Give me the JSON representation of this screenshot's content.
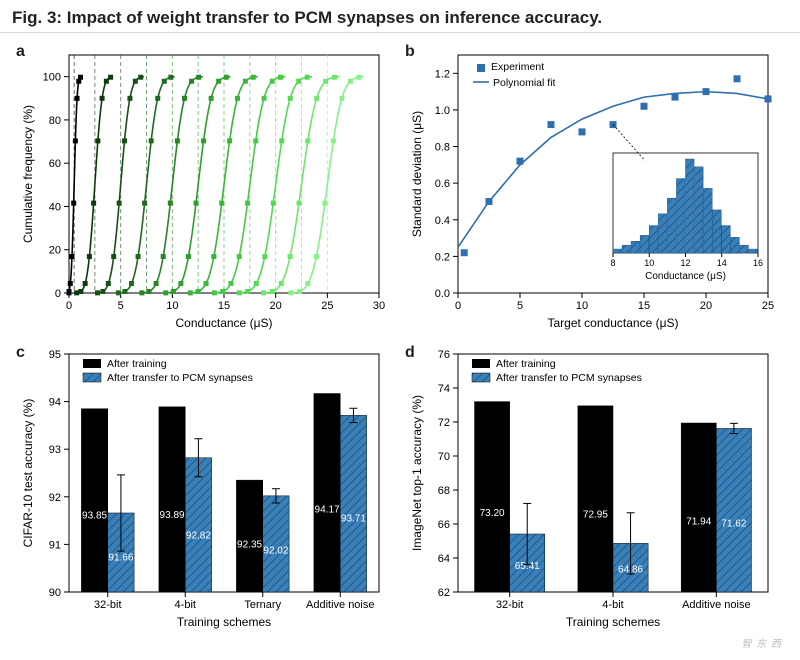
{
  "title": "Fig. 3: Impact of weight transfer to PCM synapses on inference accuracy.",
  "panel_labels": {
    "a": "a",
    "b": "b",
    "c": "c",
    "d": "d"
  },
  "colors": {
    "bg": "#ffffff",
    "axis": "#000000",
    "grid": "#d0d0d0",
    "bar_black": "#000000",
    "bar_blue": "#3a7fb8",
    "bar_blue_stripe": "#1f5a8a",
    "scatter_blue": "#2e6fae"
  },
  "panel_a": {
    "type": "cdf",
    "xlabel": "Conductance (μS)",
    "ylabel": "Cumulative frequency (%)",
    "xlim": [
      0,
      30
    ],
    "xtick_step": 5,
    "ylim": [
      0,
      110
    ],
    "yticks": [
      0,
      20,
      40,
      60,
      80,
      100
    ],
    "curves": [
      {
        "target": 0.5,
        "sd": 0.22,
        "color": "#000000"
      },
      {
        "target": 2.5,
        "sd": 0.55,
        "color": "#0d3a0d"
      },
      {
        "target": 5.0,
        "sd": 0.7,
        "color": "#174f17"
      },
      {
        "target": 7.5,
        "sd": 0.85,
        "color": "#1f6a1f"
      },
      {
        "target": 10.0,
        "sd": 0.92,
        "color": "#278527"
      },
      {
        "target": 12.5,
        "sd": 0.98,
        "color": "#2f9e2f"
      },
      {
        "target": 15.0,
        "sd": 1.02,
        "color": "#39b539"
      },
      {
        "target": 17.5,
        "sd": 1.07,
        "color": "#45c945"
      },
      {
        "target": 20.0,
        "sd": 1.1,
        "color": "#55d955"
      },
      {
        "target": 22.5,
        "sd": 1.15,
        "color": "#6ee66e"
      },
      {
        "target": 25.0,
        "sd": 1.1,
        "color": "#88f088"
      }
    ]
  },
  "panel_b": {
    "type": "scatter+fit",
    "xlabel": "Target conductance (μS)",
    "ylabel": "Standard deviation (μS)",
    "xlim": [
      0,
      25
    ],
    "xtick_step": 5,
    "ylim": [
      0.0,
      1.3
    ],
    "ytick_step": 0.2,
    "legend": [
      "Experiment",
      "Polynomial fit"
    ],
    "experiment": [
      [
        0.5,
        0.22
      ],
      [
        2.5,
        0.5
      ],
      [
        5.0,
        0.72
      ],
      [
        7.5,
        0.92
      ],
      [
        10.0,
        0.88
      ],
      [
        12.5,
        0.92
      ],
      [
        15.0,
        1.02
      ],
      [
        17.5,
        1.07
      ],
      [
        20.0,
        1.1
      ],
      [
        22.5,
        1.17
      ],
      [
        25.0,
        1.06
      ]
    ],
    "fit": [
      [
        0,
        0.25
      ],
      [
        2.5,
        0.5
      ],
      [
        5,
        0.7
      ],
      [
        7.5,
        0.85
      ],
      [
        10,
        0.95
      ],
      [
        12.5,
        1.02
      ],
      [
        15,
        1.07
      ],
      [
        17.5,
        1.09
      ],
      [
        20,
        1.1
      ],
      [
        22.5,
        1.09
      ],
      [
        25,
        1.06
      ]
    ],
    "inset": {
      "xlabel": "Conductance (μS)",
      "xlim": [
        8,
        16
      ],
      "xticks": [
        8,
        10,
        12,
        14,
        16
      ],
      "bins": [
        [
          8,
          2
        ],
        [
          8.5,
          4
        ],
        [
          9,
          6
        ],
        [
          9.5,
          9
        ],
        [
          10,
          14
        ],
        [
          10.5,
          20
        ],
        [
          11,
          28
        ],
        [
          11.5,
          38
        ],
        [
          12,
          48
        ],
        [
          12.5,
          44
        ],
        [
          13,
          33
        ],
        [
          13.5,
          22
        ],
        [
          14,
          14
        ],
        [
          14.5,
          8
        ],
        [
          15,
          4
        ],
        [
          15.5,
          2
        ]
      ],
      "bar_color": "#3a7fb8",
      "bar_stripe": "#1f5a8a"
    }
  },
  "panel_c": {
    "type": "bar",
    "xlabel": "Training schemes",
    "ylabel": "CIFAR-10 test accuracy (%)",
    "ylim": [
      90,
      95
    ],
    "ytick_step": 1,
    "categories": [
      "32-bit",
      "4-bit",
      "Ternary",
      "Additive noise"
    ],
    "series": [
      {
        "name": "After training",
        "color": "#000000",
        "hatched": false,
        "values": [
          93.85,
          93.89,
          92.35,
          94.17
        ],
        "errors": [
          0,
          0,
          0,
          0
        ]
      },
      {
        "name": "After transfer to PCM synapses",
        "color": "#3a7fb8",
        "hatched": true,
        "values": [
          91.66,
          92.82,
          92.02,
          93.71
        ],
        "errors": [
          0.8,
          0.4,
          0.15,
          0.15
        ]
      }
    ],
    "legend": [
      "After training",
      "After transfer to PCM synapses"
    ]
  },
  "panel_d": {
    "type": "bar",
    "xlabel": "Training schemes",
    "ylabel": "ImageNet top-1 accuracy (%)",
    "ylim": [
      62,
      76
    ],
    "ytick_step": 2,
    "categories": [
      "32-bit",
      "4-bit",
      "Additive noise"
    ],
    "series": [
      {
        "name": "After training",
        "color": "#000000",
        "hatched": false,
        "values": [
          73.2,
          72.95,
          71.94
        ],
        "errors": [
          0,
          0,
          0
        ]
      },
      {
        "name": "After transfer to PCM synapses",
        "color": "#3a7fb8",
        "hatched": true,
        "values": [
          65.41,
          64.86,
          71.62
        ],
        "errors": [
          1.8,
          1.8,
          0.3
        ]
      }
    ],
    "legend": [
      "After training",
      "After transfer to PCM synapses"
    ]
  },
  "watermark": "智 东 西"
}
